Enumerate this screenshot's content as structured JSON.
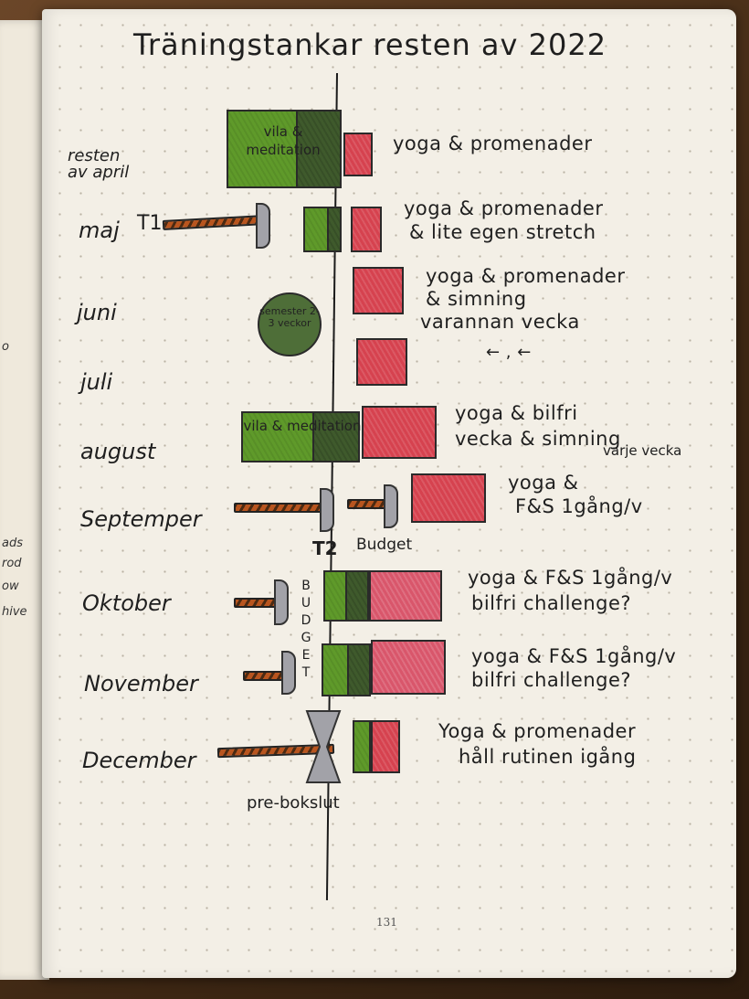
{
  "title": "Träningstankar resten av 2022",
  "months": {
    "april": "resten av april",
    "maj": "maj",
    "juni": "juni",
    "juli": "juli",
    "august": "august",
    "september": "Septemper",
    "oktober": "Oktober",
    "november": "November",
    "december": "December"
  },
  "notes": {
    "april": "yoga & promenader",
    "maj_1": "yoga & promenader",
    "maj_2": "& lite egen stretch",
    "juni_1": "yoga & promenader",
    "juni_2": "& simning",
    "juni_3": "varannan vecka",
    "juli": "←  ,  ←",
    "august_1": "yoga & bilfri",
    "august_2": "vecka & simning",
    "august_3": "varje vecka",
    "september_1": "yoga  &",
    "september_2": "F&S 1gång/v",
    "oktober_1": "yoga & F&S 1gång/v",
    "oktober_2": "bilfri challenge?",
    "november_1": "yoga & F&S 1gång/v",
    "november_2": "bilfri challenge?",
    "december_1": "Yoga & promenader",
    "december_2": "håll rutinen igång"
  },
  "labels": {
    "vila_april": "vila & meditation",
    "vila_august": "vila & meditation",
    "semester": "semester 2-3 veckor",
    "t1": "T1",
    "t2": "T2",
    "budget_sep": "Budget",
    "budget_vertical": "B U D G E T",
    "pre_bokslut": "pre-bokslut"
  },
  "page_number": "131",
  "left_page_scribbles": [
    "o",
    "ads",
    "rod",
    "ow",
    "hive"
  ],
  "colors": {
    "rest": "#5f9a2a",
    "rest_dark": "#3f5a2c",
    "training": "#d6424f",
    "work": "#b8551f",
    "paper": "#f3efe6"
  }
}
